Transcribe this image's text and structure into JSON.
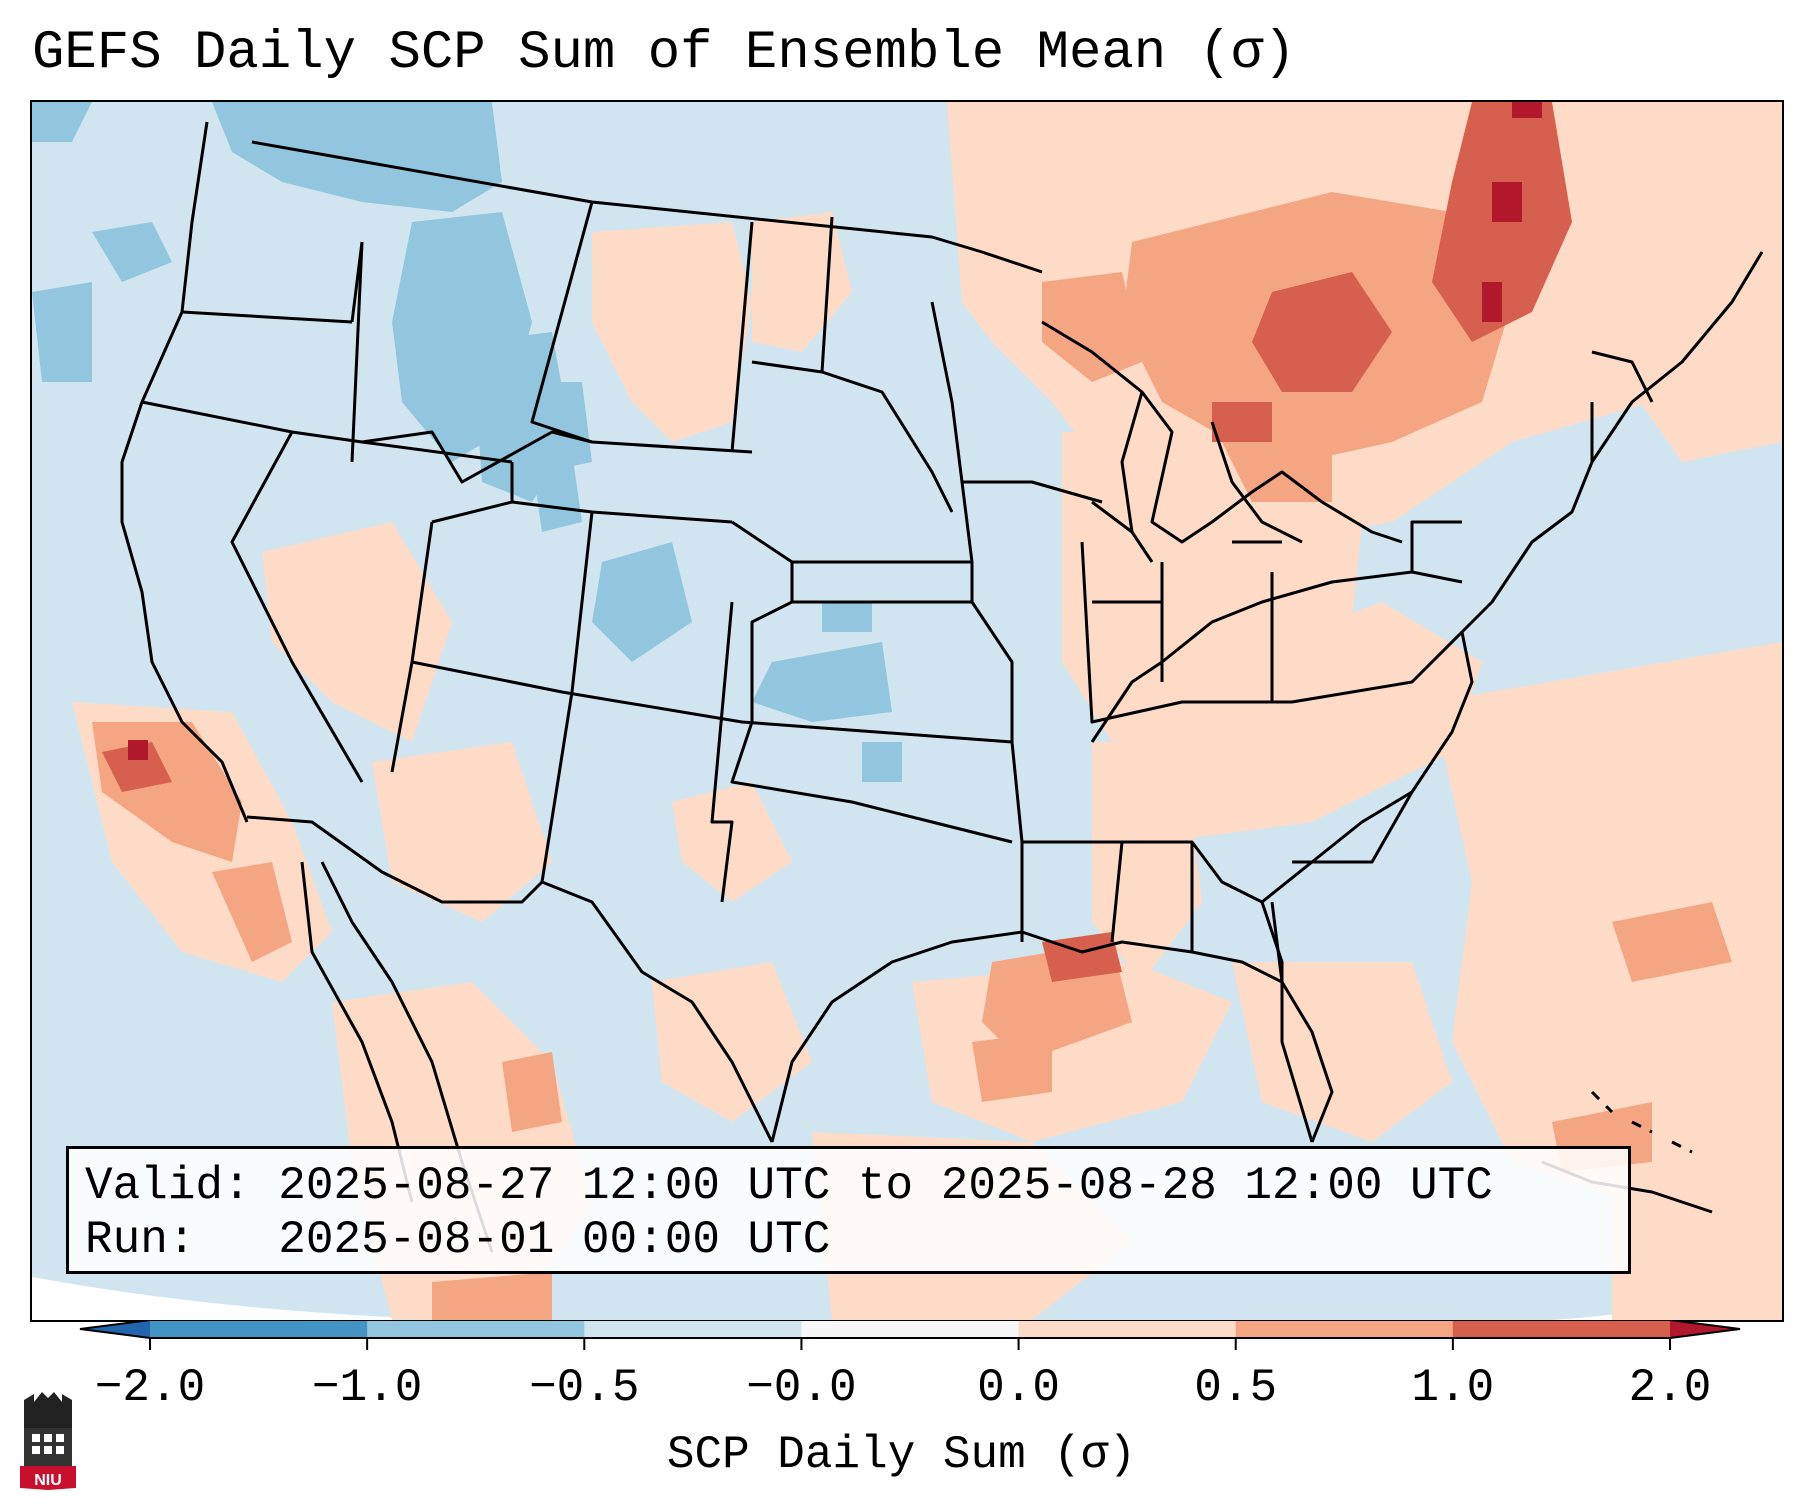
{
  "title": "GEFS Daily SCP Sum of Ensemble Mean (σ)",
  "info": {
    "valid_label": "Valid:",
    "valid_value": "2025-08-27 12:00 UTC to 2025-08-28 12:00 UTC",
    "run_label": "Run:",
    "run_value": "2025-08-01 00:00 UTC"
  },
  "colorbar": {
    "label": "SCP Daily Sum (σ)",
    "ticks": [
      "−2.0",
      "−1.0",
      "−0.5",
      "−0.0",
      "0.0",
      "0.5",
      "1.0",
      "2.0"
    ],
    "bins": [
      {
        "range": "< -2.0",
        "color": "#2166ac"
      },
      {
        "range": "-2.0 to -1.0",
        "color": "#4393c3"
      },
      {
        "range": "-1.0 to -0.5",
        "color": "#92c5de"
      },
      {
        "range": "-0.5 to -0.0",
        "color": "#d1e5f0"
      },
      {
        "range": "-0.0 to 0.0",
        "color": "#f7f7f7"
      },
      {
        "range": "0.0 to 0.5",
        "color": "#fddbc7"
      },
      {
        "range": "0.5 to 1.0",
        "color": "#f4a582"
      },
      {
        "range": "1.0 to 2.0",
        "color": "#d6604d"
      },
      {
        "range": "> 2.0",
        "color": "#b2182b"
      }
    ]
  },
  "map": {
    "region": "CONUS",
    "projection_edge_color": "#ffffff",
    "anomaly_regions": [
      {
        "area": "Upper Great Lakes / Ontario",
        "level": "1.0 to 2.0"
      },
      {
        "area": "Quebec",
        "level": "1.0 to 2.0"
      },
      {
        "area": "Southern California offshore",
        "level": "1.0 to 2.0"
      },
      {
        "area": "Louisiana / Texas Gulf Coast",
        "level": "0.5 to 1.0"
      },
      {
        "area": "Pacific Northwest / Idaho",
        "level": "-1.0 to -0.5"
      },
      {
        "area": "Colorado / Kansas",
        "level": "-1.0 to -0.5"
      }
    ]
  },
  "logo": {
    "text": "NIU",
    "color": "#c8102e"
  }
}
